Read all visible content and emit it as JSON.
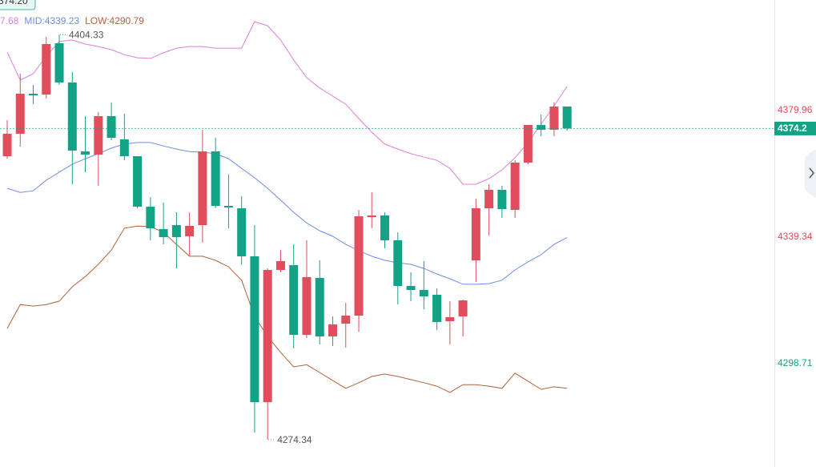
{
  "chart_data": {
    "type": "candlestick",
    "price_badge": "374.20",
    "up_color": "#e04d5c",
    "down_color": "#12a286",
    "ylim": [
      4265.56,
      4415.44
    ],
    "yticks": [
      {
        "value": 4379.96,
        "label": "4379.96",
        "color": "#e04d5c"
      },
      {
        "value": 4339.34,
        "label": "4339.34",
        "color": "#e04d5c"
      },
      {
        "value": 4298.71,
        "label": "4298.71",
        "color": "#12a286"
      }
    ],
    "open": [
      4365.31,
      4372.5,
      4385.36,
      4385.1,
      4401.56,
      4388.96,
      4366.85,
      4365.82,
      4378.16,
      4370.71,
      4365.31,
      4349.11,
      4341.91,
      4343.19,
      4339.6,
      4343.19,
      4366.85,
      4349.37,
      4348.59,
      4333.17,
      4286.37,
      4328.8,
      4330.34,
      4307.97,
      4326.23,
      4307.46,
      4311.57,
      4314.14,
      4345.77,
      4346.28,
      4338.31,
      4323.66,
      4322.37,
      4320.83,
      4312.34,
      4313.89,
      4331.88,
      4348.59,
      4354.51,
      4348.08,
      4363.25,
      4375.33,
      4373.79,
      4381.25
    ],
    "high": [
      4376.87,
      4391.79,
      4388.19,
      4403.61,
      4404.33,
      4392.3,
      4378.16,
      4379.45,
      4382.53,
      4378.93,
      4365.31,
      4352.19,
      4350.4,
      4347.31,
      4347.31,
      4373.79,
      4371.22,
      4359.39,
      4352.45,
      4343.19,
      4329.31,
      4335.23,
      4337.02,
      4338.31,
      4331.88,
      4313.89,
      4318.26,
      4348.08,
      4353.74,
      4347.31,
      4340.88,
      4328.03,
      4331.63,
      4322.88,
      4318.77,
      4319.29,
      4351.68,
      4356.31,
      4355.79,
      4364.02,
      4375.33,
      4378.68,
      4382.53,
      4381.25
    ],
    "low": [
      4364.53,
      4368.39,
      4382.02,
      4383.82,
      4388.19,
      4356.31,
      4360.16,
      4355.79,
      4370.45,
      4364.02,
      4348.59,
      4338.31,
      4337.02,
      4329.31,
      4333.17,
      4337.54,
      4348.59,
      4342.17,
      4330.41,
      4276.61,
      4274.34,
      4328.03,
      4303.6,
      4306.94,
      4304.89,
      4304.37,
      4303.86,
      4309.0,
      4342.17,
      4335.74,
      4317.74,
      4318.77,
      4316.2,
      4309.51,
      4304.89,
      4307.46,
      4324.94,
      4339.87,
      4345.51,
      4345.51,
      4362.73,
      4371.73,
      4371.73,
      4373.53
    ],
    "close": [
      4372.5,
      4385.36,
      4384.85,
      4401.3,
      4388.96,
      4367.11,
      4365.82,
      4378.16,
      4371.22,
      4365.31,
      4349.11,
      4342.17,
      4339.34,
      4339.34,
      4342.94,
      4366.85,
      4349.37,
      4348.85,
      4333.17,
      4286.37,
      4328.8,
      4331.63,
      4307.97,
      4326.48,
      4307.46,
      4311.31,
      4314.14,
      4346.02,
      4346.28,
      4338.31,
      4323.66,
      4322.37,
      4320.31,
      4312.09,
      4313.63,
      4319.03,
      4348.59,
      4354.51,
      4348.34,
      4363.25,
      4375.33,
      4373.79,
      4381.25,
      4374.2
    ],
    "series": [
      {
        "name": "7.68",
        "color": "#e07ee0",
        "values": [
          4398.7,
          4389.7,
          4391.8,
          4397.4,
          4402.1,
          4402.6,
          4401.3,
          4400.5,
          4399.5,
          4397.9,
          4396.9,
          4396.7,
          4398.5,
          4400.0,
          4400.5,
          4400.5,
          4400.0,
          4400.0,
          4400.0,
          4408.5,
          4407.2,
          4402.6,
          4396.2,
          4390.5,
          4387.2,
          4384.6,
          4382.0,
          4377.4,
          4373.0,
          4369.2,
          4367.6,
          4366.1,
          4365.0,
          4364.0,
          4361.4,
          4356.3,
          4356.3,
          4358.1,
          4360.9,
          4364.8,
          4369.7,
          4375.6,
          4381.5,
          4387.7
        ]
      },
      {
        "name": "MID:4339.23",
        "color": "#6f8de8",
        "values": [
          4355.0,
          4353.7,
          4354.2,
          4357.6,
          4360.2,
          4362.7,
          4364.5,
          4366.1,
          4367.9,
          4369.2,
          4369.7,
          4369.7,
          4368.6,
          4367.6,
          4366.8,
          4366.6,
          4366.1,
          4364.5,
          4361.4,
          4358.4,
          4355.0,
          4351.2,
          4347.3,
          4343.9,
          4341.4,
          4339.6,
          4337.0,
          4335.0,
          4333.2,
          4331.9,
          4331.1,
          4330.6,
          4329.3,
          4327.5,
          4326.0,
          4324.2,
          4324.2,
          4324.4,
          4325.5,
          4328.8,
          4331.4,
          4333.7,
          4337.0,
          4339.2
        ]
      },
      {
        "name": "LOW:4290.79",
        "color": "#b0623a",
        "values": [
          4310.0,
          4317.7,
          4317.2,
          4317.7,
          4318.8,
          4323.4,
          4326.7,
          4330.6,
          4335.2,
          4342.2,
          4342.9,
          4342.7,
          4340.9,
          4337.0,
          4333.2,
          4333.2,
          4331.9,
          4329.8,
          4325.5,
          4313.9,
          4307.5,
          4302.3,
          4297.7,
          4298.4,
          4295.9,
          4293.3,
          4290.8,
          4292.6,
          4294.6,
          4295.4,
          4294.6,
          4293.6,
          4292.6,
          4291.5,
          4289.5,
          4292.0,
          4292.0,
          4291.5,
          4290.8,
          4295.7,
          4293.1,
          4290.5,
          4291.3,
          4290.8
        ]
      }
    ]
  }
}
